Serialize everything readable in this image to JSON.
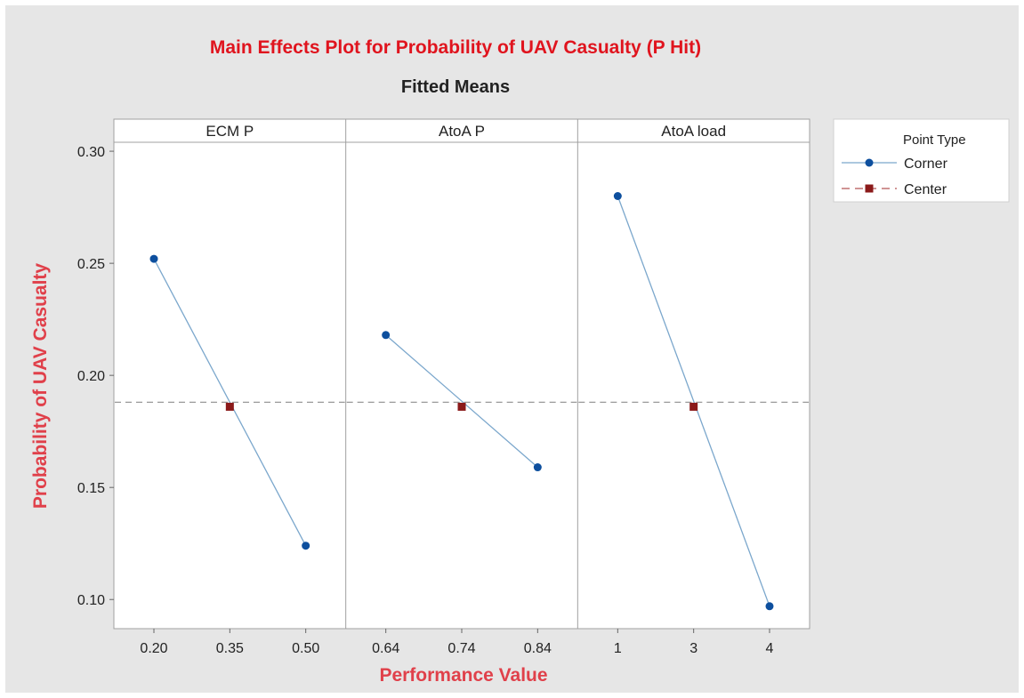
{
  "chart_data": {
    "type": "line",
    "title": "Main Effects Plot for Probability of UAV Casualty (P Hit)",
    "subtitle": "Fitted Means",
    "xlabel": "Performance Value",
    "ylabel": "Probability of UAV Casualty",
    "ylim": [
      0.087,
      0.304
    ],
    "yticks": [
      "0.10",
      "0.15",
      "0.20",
      "0.25",
      "0.30"
    ],
    "reference_line": 0.188,
    "panels": [
      {
        "name": "ECM P",
        "xticks": [
          "0.20",
          "0.35",
          "0.50"
        ],
        "corner": [
          {
            "x": "0.20",
            "y": 0.252
          },
          {
            "x": "0.50",
            "y": 0.124
          }
        ],
        "center": [
          {
            "x": "0.35",
            "y": 0.186
          }
        ]
      },
      {
        "name": "AtoA P",
        "xticks": [
          "0.64",
          "0.74",
          "0.84"
        ],
        "corner": [
          {
            "x": "0.64",
            "y": 0.218
          },
          {
            "x": "0.84",
            "y": 0.159
          }
        ],
        "center": [
          {
            "x": "0.74",
            "y": 0.186
          }
        ]
      },
      {
        "name": "AtoA load",
        "xticks": [
          "1",
          "3",
          "4"
        ],
        "corner": [
          {
            "x": "1",
            "y": 0.28
          },
          {
            "x": "4",
            "y": 0.097
          }
        ],
        "center": [
          {
            "x": "3",
            "y": 0.186
          }
        ]
      }
    ],
    "legend": {
      "title": "Point Type",
      "position": "right",
      "entries": [
        {
          "name": "Corner",
          "color": "#0d4f9e",
          "line_color": "#7ba7cc",
          "marker": "circle",
          "dash": "solid"
        },
        {
          "name": "Center",
          "color": "#8b1a1a",
          "line_color": "#b55454",
          "marker": "square",
          "dash": "dashed"
        }
      ]
    },
    "colors": {
      "title": "#e0141e",
      "axis_label": "#e0404a",
      "reference": "#999999"
    }
  }
}
